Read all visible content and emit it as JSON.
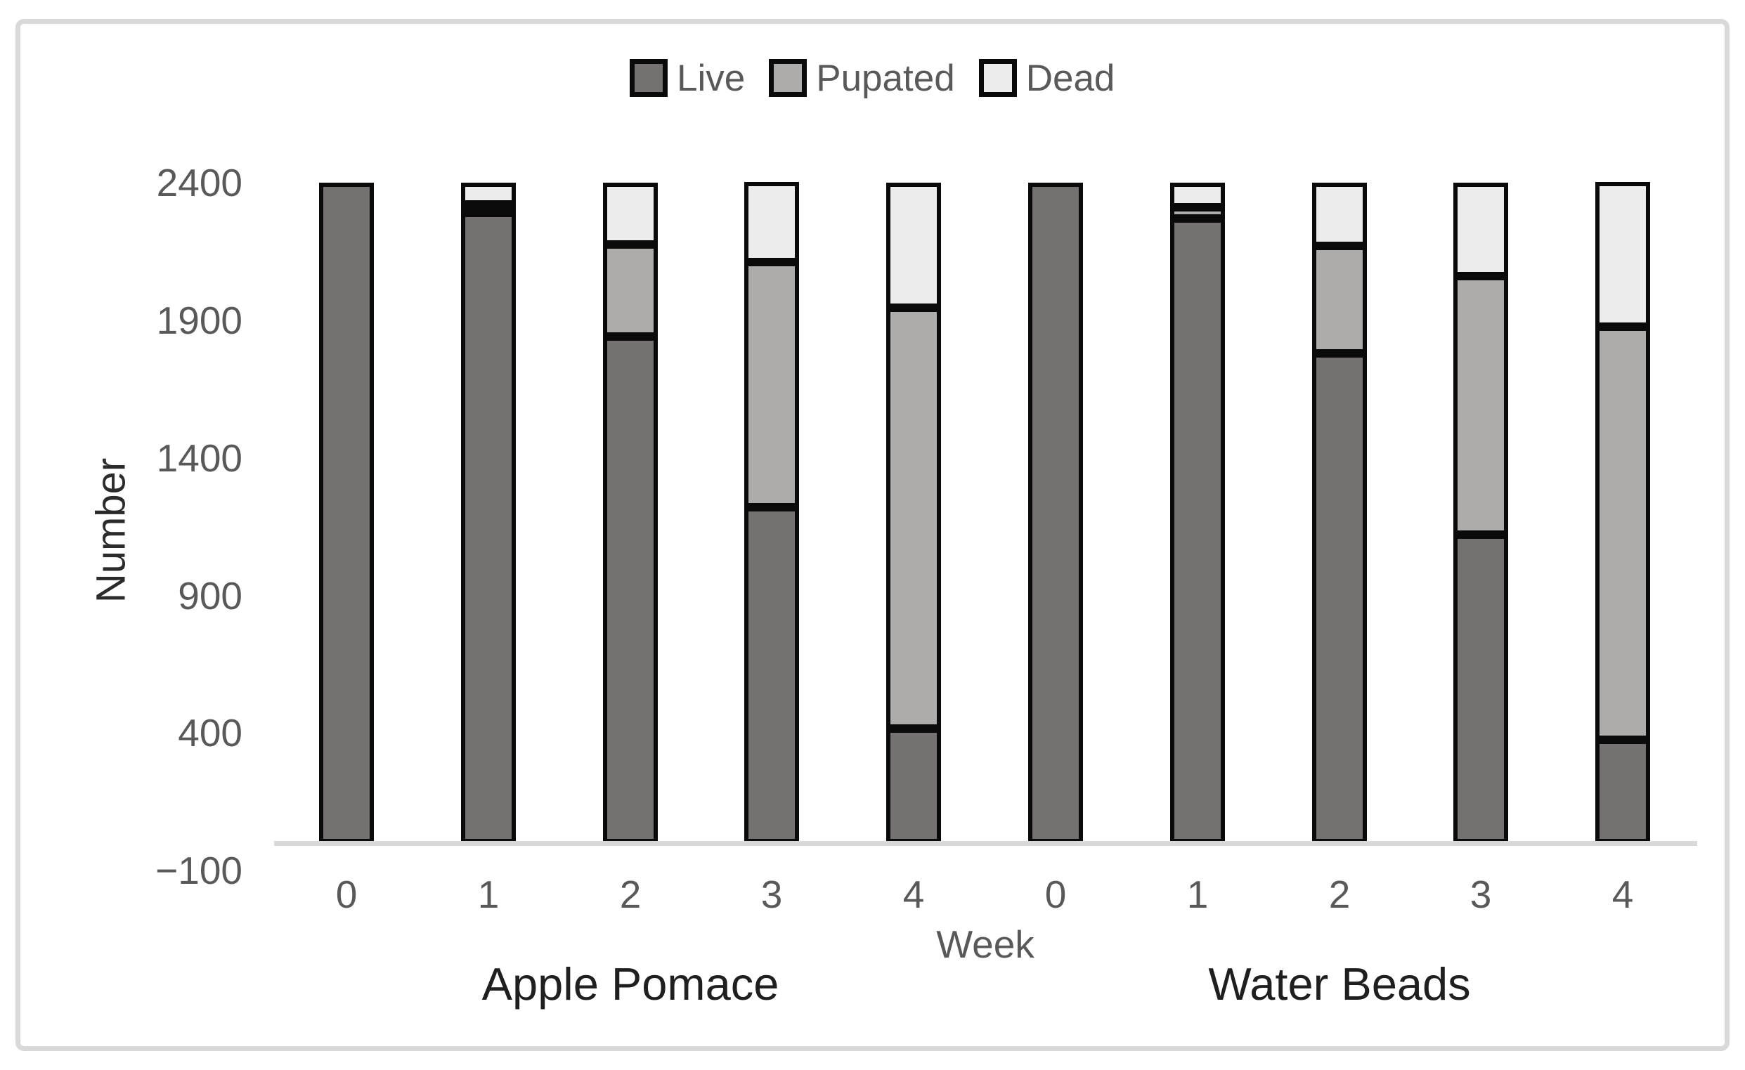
{
  "chart_data": {
    "type": "bar",
    "stacked": true,
    "legend": [
      "Live",
      "Pupated",
      "Dead"
    ],
    "legend_position": "top-center",
    "ylabel": "Number",
    "xlabel": "Week",
    "ylim": [
      -100,
      2400
    ],
    "yticks": [
      2400,
      1900,
      1400,
      900,
      400,
      -100
    ],
    "ytick_labels": [
      "2400",
      "1900",
      "1400",
      "900",
      "400",
      "−100"
    ],
    "grid": false,
    "bar_total": 2400,
    "groups": [
      {
        "label": "Apple Pomace",
        "categories": [
          "0",
          "1",
          "2",
          "3",
          "4"
        ],
        "series": [
          {
            "name": "Live",
            "values": [
              2400,
              2290,
              1840,
              1220,
              415
            ]
          },
          {
            "name": "Pupated",
            "values": [
              0,
              30,
              335,
              890,
              1530
            ]
          },
          {
            "name": "Dead",
            "values": [
              0,
              80,
              225,
              290,
              455
            ]
          }
        ]
      },
      {
        "label": "Water Beads",
        "categories": [
          "0",
          "1",
          "2",
          "3",
          "4"
        ],
        "series": [
          {
            "name": "Live",
            "values": [
              2400,
              2270,
              1780,
              1120,
              375
            ]
          },
          {
            "name": "Pupated",
            "values": [
              0,
              40,
              390,
              940,
              1500
            ]
          },
          {
            "name": "Dead",
            "values": [
              0,
              90,
              230,
              340,
              525
            ]
          }
        ]
      }
    ],
    "colors": {
      "Live": "#767171",
      "Pupated": "#aeabab",
      "Dead": "#edecec"
    },
    "bar_border_color": "#0a0a0a",
    "axis_line_color": "#d9d9d9",
    "tick_text_color": "#595959",
    "group_label_color": "#1f1f1f"
  }
}
